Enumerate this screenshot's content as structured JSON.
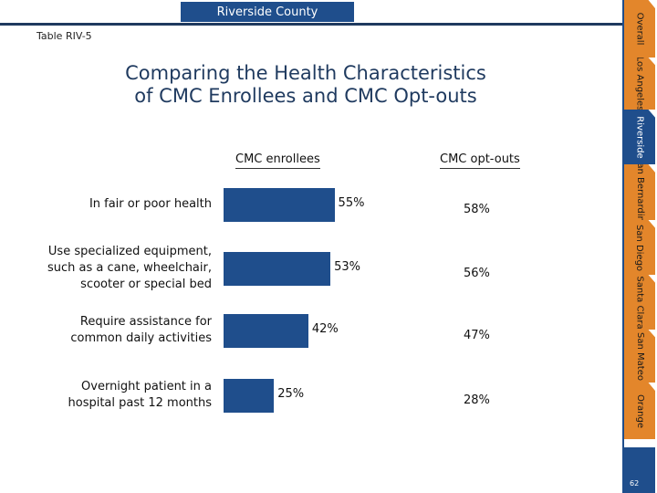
{
  "header": {
    "county": "Riverside County"
  },
  "table_label": "Table RIV-5",
  "title_line1": "Comparing the Health Characteristics",
  "title_line2": "of CMC Enrollees and CMC Opt-outs",
  "colors": {
    "bar": "#1f4e8c",
    "tab": "#e3862b",
    "tab_active": "#1f4e8c",
    "rule": "#1f3a5f"
  },
  "side_tabs": [
    {
      "label": "Overall",
      "active": false
    },
    {
      "label": "Los Angeles",
      "active": false
    },
    {
      "label": "Riverside",
      "active": true
    },
    {
      "label": "San Bernardino",
      "active": false
    },
    {
      "label": "San Diego",
      "active": false
    },
    {
      "label": "Santa Clara",
      "active": false
    },
    {
      "label": "San Mateo",
      "active": false
    },
    {
      "label": "Orange",
      "active": false
    }
  ],
  "page_number": "62",
  "chart_data": {
    "type": "bar",
    "orientation": "horizontal",
    "series": [
      {
        "name": "CMC enrollees",
        "values": [
          55,
          53,
          42,
          25
        ],
        "labels": [
          "55%",
          "53%",
          "42%",
          "25%"
        ]
      },
      {
        "name": "CMC opt-outs",
        "values": [
          58,
          56,
          47,
          28
        ],
        "labels": [
          "58%",
          "56%",
          "47%",
          "28%"
        ]
      }
    ],
    "categories": [
      "In fair or poor health",
      "Use specialized equipment, such as a cane, wheelchair, scooter or special bed",
      "Require assistance for common daily activities",
      "Overnight patient in a hospital past 12 months"
    ],
    "category_lines": [
      [
        "In fair or poor health"
      ],
      [
        "Use specialized equipment,",
        "such as a cane, wheelchair,",
        "scooter or special bed"
      ],
      [
        "Require assistance for",
        "common daily activities"
      ],
      [
        "Overnight patient in a",
        "hospital past 12 months"
      ]
    ],
    "title": "Comparing the Health Characteristics of CMC Enrollees and CMC Opt-outs",
    "ylim": [
      0,
      100
    ]
  }
}
